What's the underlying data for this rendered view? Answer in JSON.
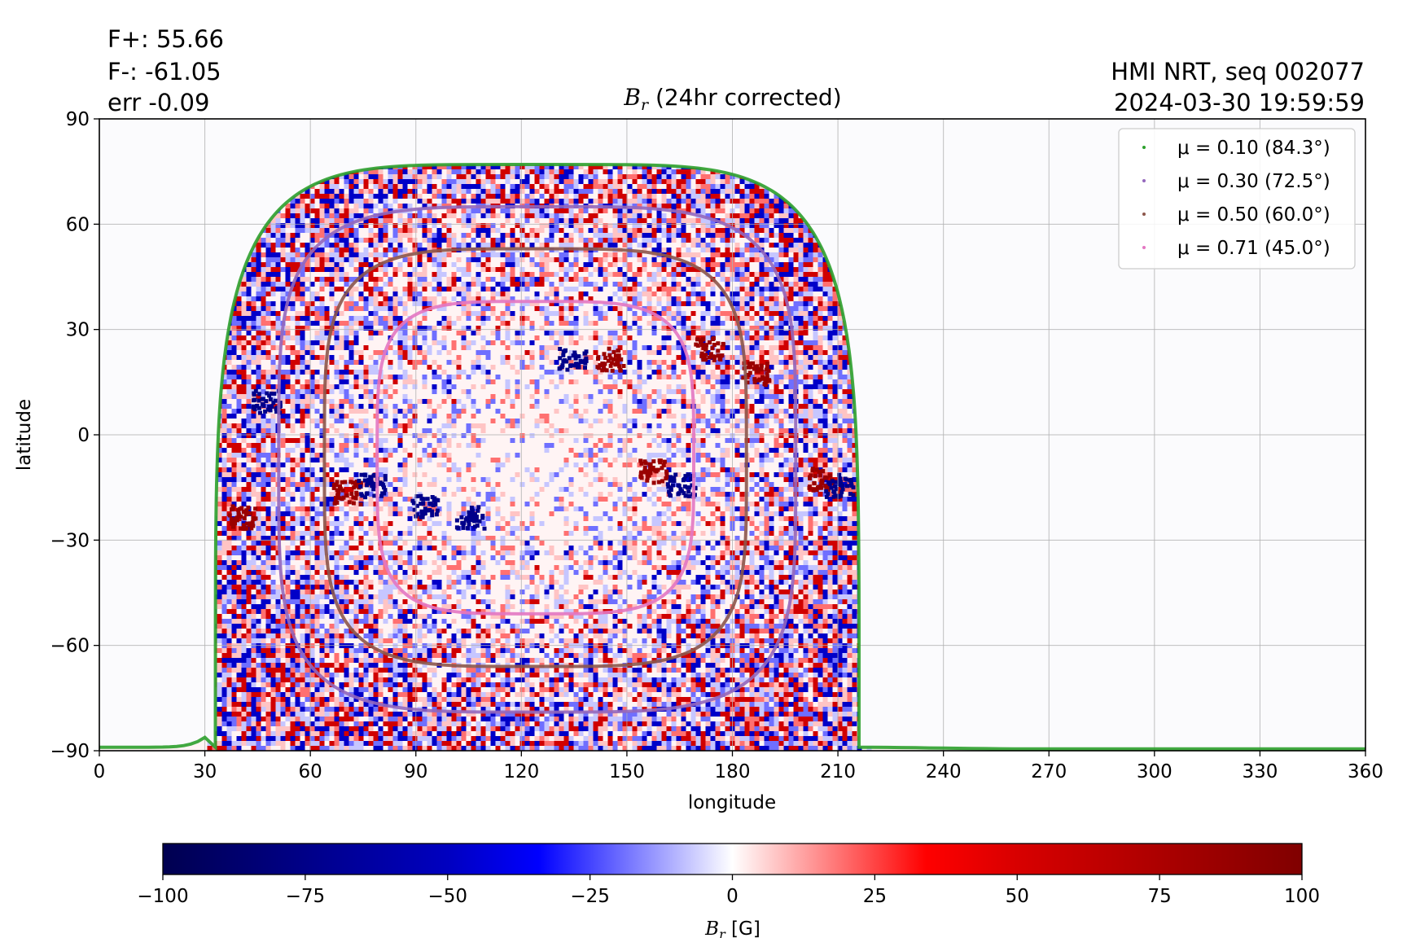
{
  "header": {
    "flux_plus": "F+: 55.66",
    "flux_minus": "F-: -61.05",
    "err": "err -0.09",
    "instrument": "HMI NRT, seq 002077",
    "datetime": "2024-03-30 19:59:59"
  },
  "chart_data": {
    "type": "heatmap",
    "title": {
      "symbol": "B",
      "sub": "r",
      "text": " (24hr corrected)"
    },
    "xlabel": "longitude",
    "ylabel": "latitude",
    "xlim": [
      0,
      360
    ],
    "ylim": [
      -90,
      90
    ],
    "xticks": [
      0,
      30,
      60,
      90,
      120,
      150,
      180,
      210,
      240,
      270,
      300,
      330,
      360
    ],
    "yticks": [
      -90,
      -60,
      -30,
      0,
      30,
      60,
      90
    ],
    "ytick_labels": [
      "−90",
      "−60",
      "−30",
      "0",
      "30",
      "60",
      "90"
    ],
    "grid": true,
    "legend_position": "top-right",
    "contours": [
      {
        "label": "μ = 0.10 (84.3°)",
        "mu": 0.1,
        "angle_deg": 84.3,
        "color": "#2ca02c",
        "lon_min": 0,
        "lon_max": 360,
        "lat_min": -89,
        "lat_max": 77
      },
      {
        "label": "μ = 0.30 (72.5°)",
        "mu": 0.3,
        "angle_deg": 72.5,
        "color": "#9467bd",
        "lon_min": 51,
        "lon_max": 198,
        "lat_min": -79,
        "lat_max": 65
      },
      {
        "label": "μ = 0.50 (60.0°)",
        "mu": 0.5,
        "angle_deg": 60.0,
        "color": "#8c564b",
        "lon_min": 64,
        "lon_max": 184,
        "lat_min": -66,
        "lat_max": 53
      },
      {
        "label": "μ = 0.71 (45.0°)",
        "mu": 0.71,
        "angle_deg": 45.0,
        "color": "#e377c2",
        "lon_min": 79,
        "lon_max": 169,
        "lat_min": -51,
        "lat_max": 38
      }
    ],
    "disk_extent": {
      "lon_min": 33,
      "lon_max": 216,
      "lat_max": 77
    },
    "active_regions": [
      {
        "lon": 92,
        "lat": -20,
        "polarity": "negative"
      },
      {
        "lon": 105,
        "lat": -23,
        "polarity": "negative"
      },
      {
        "lon": 134,
        "lat": 22,
        "polarity": "negative"
      },
      {
        "lon": 145,
        "lat": 22,
        "polarity": "positive"
      },
      {
        "lon": 173,
        "lat": 25,
        "polarity": "positive"
      },
      {
        "lon": 186,
        "lat": 18,
        "polarity": "positive"
      },
      {
        "lon": 157,
        "lat": -10,
        "polarity": "positive"
      },
      {
        "lon": 165,
        "lat": -14,
        "polarity": "negative"
      },
      {
        "lon": 205,
        "lat": -12,
        "polarity": "positive"
      },
      {
        "lon": 210,
        "lat": -14,
        "polarity": "negative"
      },
      {
        "lon": 40,
        "lat": -23,
        "polarity": "positive"
      },
      {
        "lon": 47,
        "lat": 10,
        "polarity": "negative"
      },
      {
        "lon": 70,
        "lat": -16,
        "polarity": "positive"
      },
      {
        "lon": 77,
        "lat": -14,
        "polarity": "negative"
      }
    ],
    "colorbar": {
      "label_symbol": "B",
      "label_sub": "r",
      "label_unit": " [G]",
      "min": -100,
      "max": 100,
      "ticks": [
        -100,
        -75,
        -50,
        -25,
        0,
        25,
        50,
        75,
        100
      ],
      "tick_labels": [
        "−100",
        "−75",
        "−50",
        "−25",
        "0",
        "25",
        "50",
        "75",
        "100"
      ],
      "colormap": "seismic"
    },
    "colors": {
      "negative": "#000050",
      "positive": "#800000",
      "background": "#fbfbfd"
    }
  }
}
